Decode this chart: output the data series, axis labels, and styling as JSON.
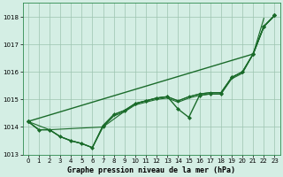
{
  "background_color": "#d4eee4",
  "plot_bg_color": "#d4eee4",
  "grid_color": "#9cc4b0",
  "line_color": "#1a6b2a",
  "xlabel": "Graphe pression niveau de la mer (hPa)",
  "ylim": [
    1013.0,
    1018.5
  ],
  "xlim": [
    -0.5,
    23.5
  ],
  "yticks": [
    1013,
    1014,
    1015,
    1016,
    1017,
    1018
  ],
  "xticks": [
    0,
    1,
    2,
    3,
    4,
    5,
    6,
    7,
    8,
    9,
    10,
    11,
    12,
    13,
    14,
    15,
    16,
    17,
    18,
    19,
    20,
    21,
    22,
    23
  ],
  "series": [
    {
      "name": "top_diagonal",
      "x": [
        0,
        21,
        22,
        23
      ],
      "y": [
        1014.2,
        1016.65,
        1017.65,
        1018.05
      ],
      "lw": 1.0,
      "marker": "D",
      "ms": 2.2
    },
    {
      "name": "main_with_dip",
      "x": [
        0,
        1,
        2,
        3,
        4,
        5,
        6,
        7,
        8,
        9,
        10,
        11,
        12,
        13,
        14,
        15,
        16,
        17,
        18,
        19,
        20,
        21,
        22,
        23
      ],
      "y": [
        1014.2,
        1013.9,
        1013.9,
        1013.65,
        1013.5,
        1013.4,
        1013.25,
        1014.05,
        1014.45,
        1014.6,
        1014.85,
        1014.95,
        1015.05,
        1015.1,
        1014.65,
        1014.35,
        1015.15,
        1015.2,
        1015.2,
        1015.8,
        1016.0,
        1016.65,
        1017.65,
        1018.05
      ],
      "lw": 1.0,
      "marker": "D",
      "ms": 2.0
    },
    {
      "name": "smooth_upper",
      "x": [
        0,
        1,
        2,
        3,
        4,
        5,
        6,
        7,
        8,
        9,
        10,
        11,
        12,
        13,
        14,
        15,
        16,
        17,
        18,
        19,
        20,
        21,
        22,
        23
      ],
      "y": [
        1014.2,
        1013.9,
        1013.9,
        1013.65,
        1013.5,
        1013.4,
        1013.25,
        1014.05,
        1014.45,
        1014.6,
        1014.85,
        1014.95,
        1015.05,
        1015.1,
        1014.95,
        1015.1,
        1015.2,
        1015.25,
        1015.25,
        1015.8,
        1016.0,
        1016.65,
        1017.65,
        1018.05
      ],
      "lw": 0.8,
      "marker": null,
      "ms": 0
    },
    {
      "name": "smooth_lower",
      "x": [
        0,
        1,
        2,
        3,
        4,
        5,
        6,
        7,
        8,
        9,
        10,
        11,
        12,
        13,
        14,
        15,
        16,
        17,
        18,
        19,
        20,
        21,
        22
      ],
      "y": [
        1014.2,
        1013.9,
        1013.9,
        1013.65,
        1013.5,
        1013.4,
        1013.25,
        1014.0,
        1014.4,
        1014.55,
        1014.8,
        1014.9,
        1015.0,
        1015.05,
        1014.9,
        1015.05,
        1015.15,
        1015.2,
        1015.2,
        1015.75,
        1015.95,
        1016.65,
        1017.95
      ],
      "lw": 0.8,
      "marker": null,
      "ms": 0
    },
    {
      "name": "markers_sparse",
      "x": [
        0,
        2,
        7,
        10,
        11,
        12,
        13,
        14,
        15,
        16,
        17,
        18,
        19,
        20,
        21,
        22,
        23
      ],
      "y": [
        1014.2,
        1013.9,
        1014.0,
        1014.85,
        1014.95,
        1015.05,
        1015.1,
        1014.95,
        1015.1,
        1015.2,
        1015.25,
        1015.25,
        1015.8,
        1016.0,
        1016.65,
        1017.65,
        1018.05
      ],
      "lw": 0.8,
      "marker": "D",
      "ms": 1.8
    }
  ]
}
